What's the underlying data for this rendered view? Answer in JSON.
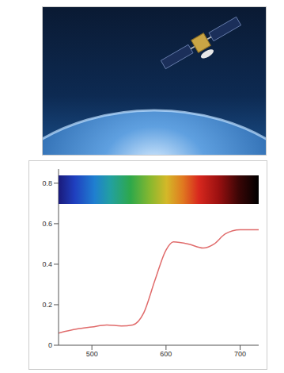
{
  "chart_data": {
    "type": "line",
    "x": [
      455,
      480,
      500,
      520,
      540,
      555,
      570,
      585,
      600,
      610,
      630,
      650,
      665,
      680,
      700,
      725
    ],
    "values": [
      0.06,
      0.08,
      0.09,
      0.1,
      0.095,
      0.1,
      0.16,
      0.32,
      0.47,
      0.51,
      0.5,
      0.48,
      0.5,
      0.55,
      0.57,
      0.57
    ],
    "color": "#e06b6b",
    "xlim": [
      455,
      725
    ],
    "xticks": [
      500,
      600,
      700
    ],
    "ylim": [
      0,
      0.87
    ],
    "yticks": [
      0,
      0.2,
      0.4,
      0.6,
      0.8
    ],
    "grid": false
  }
}
